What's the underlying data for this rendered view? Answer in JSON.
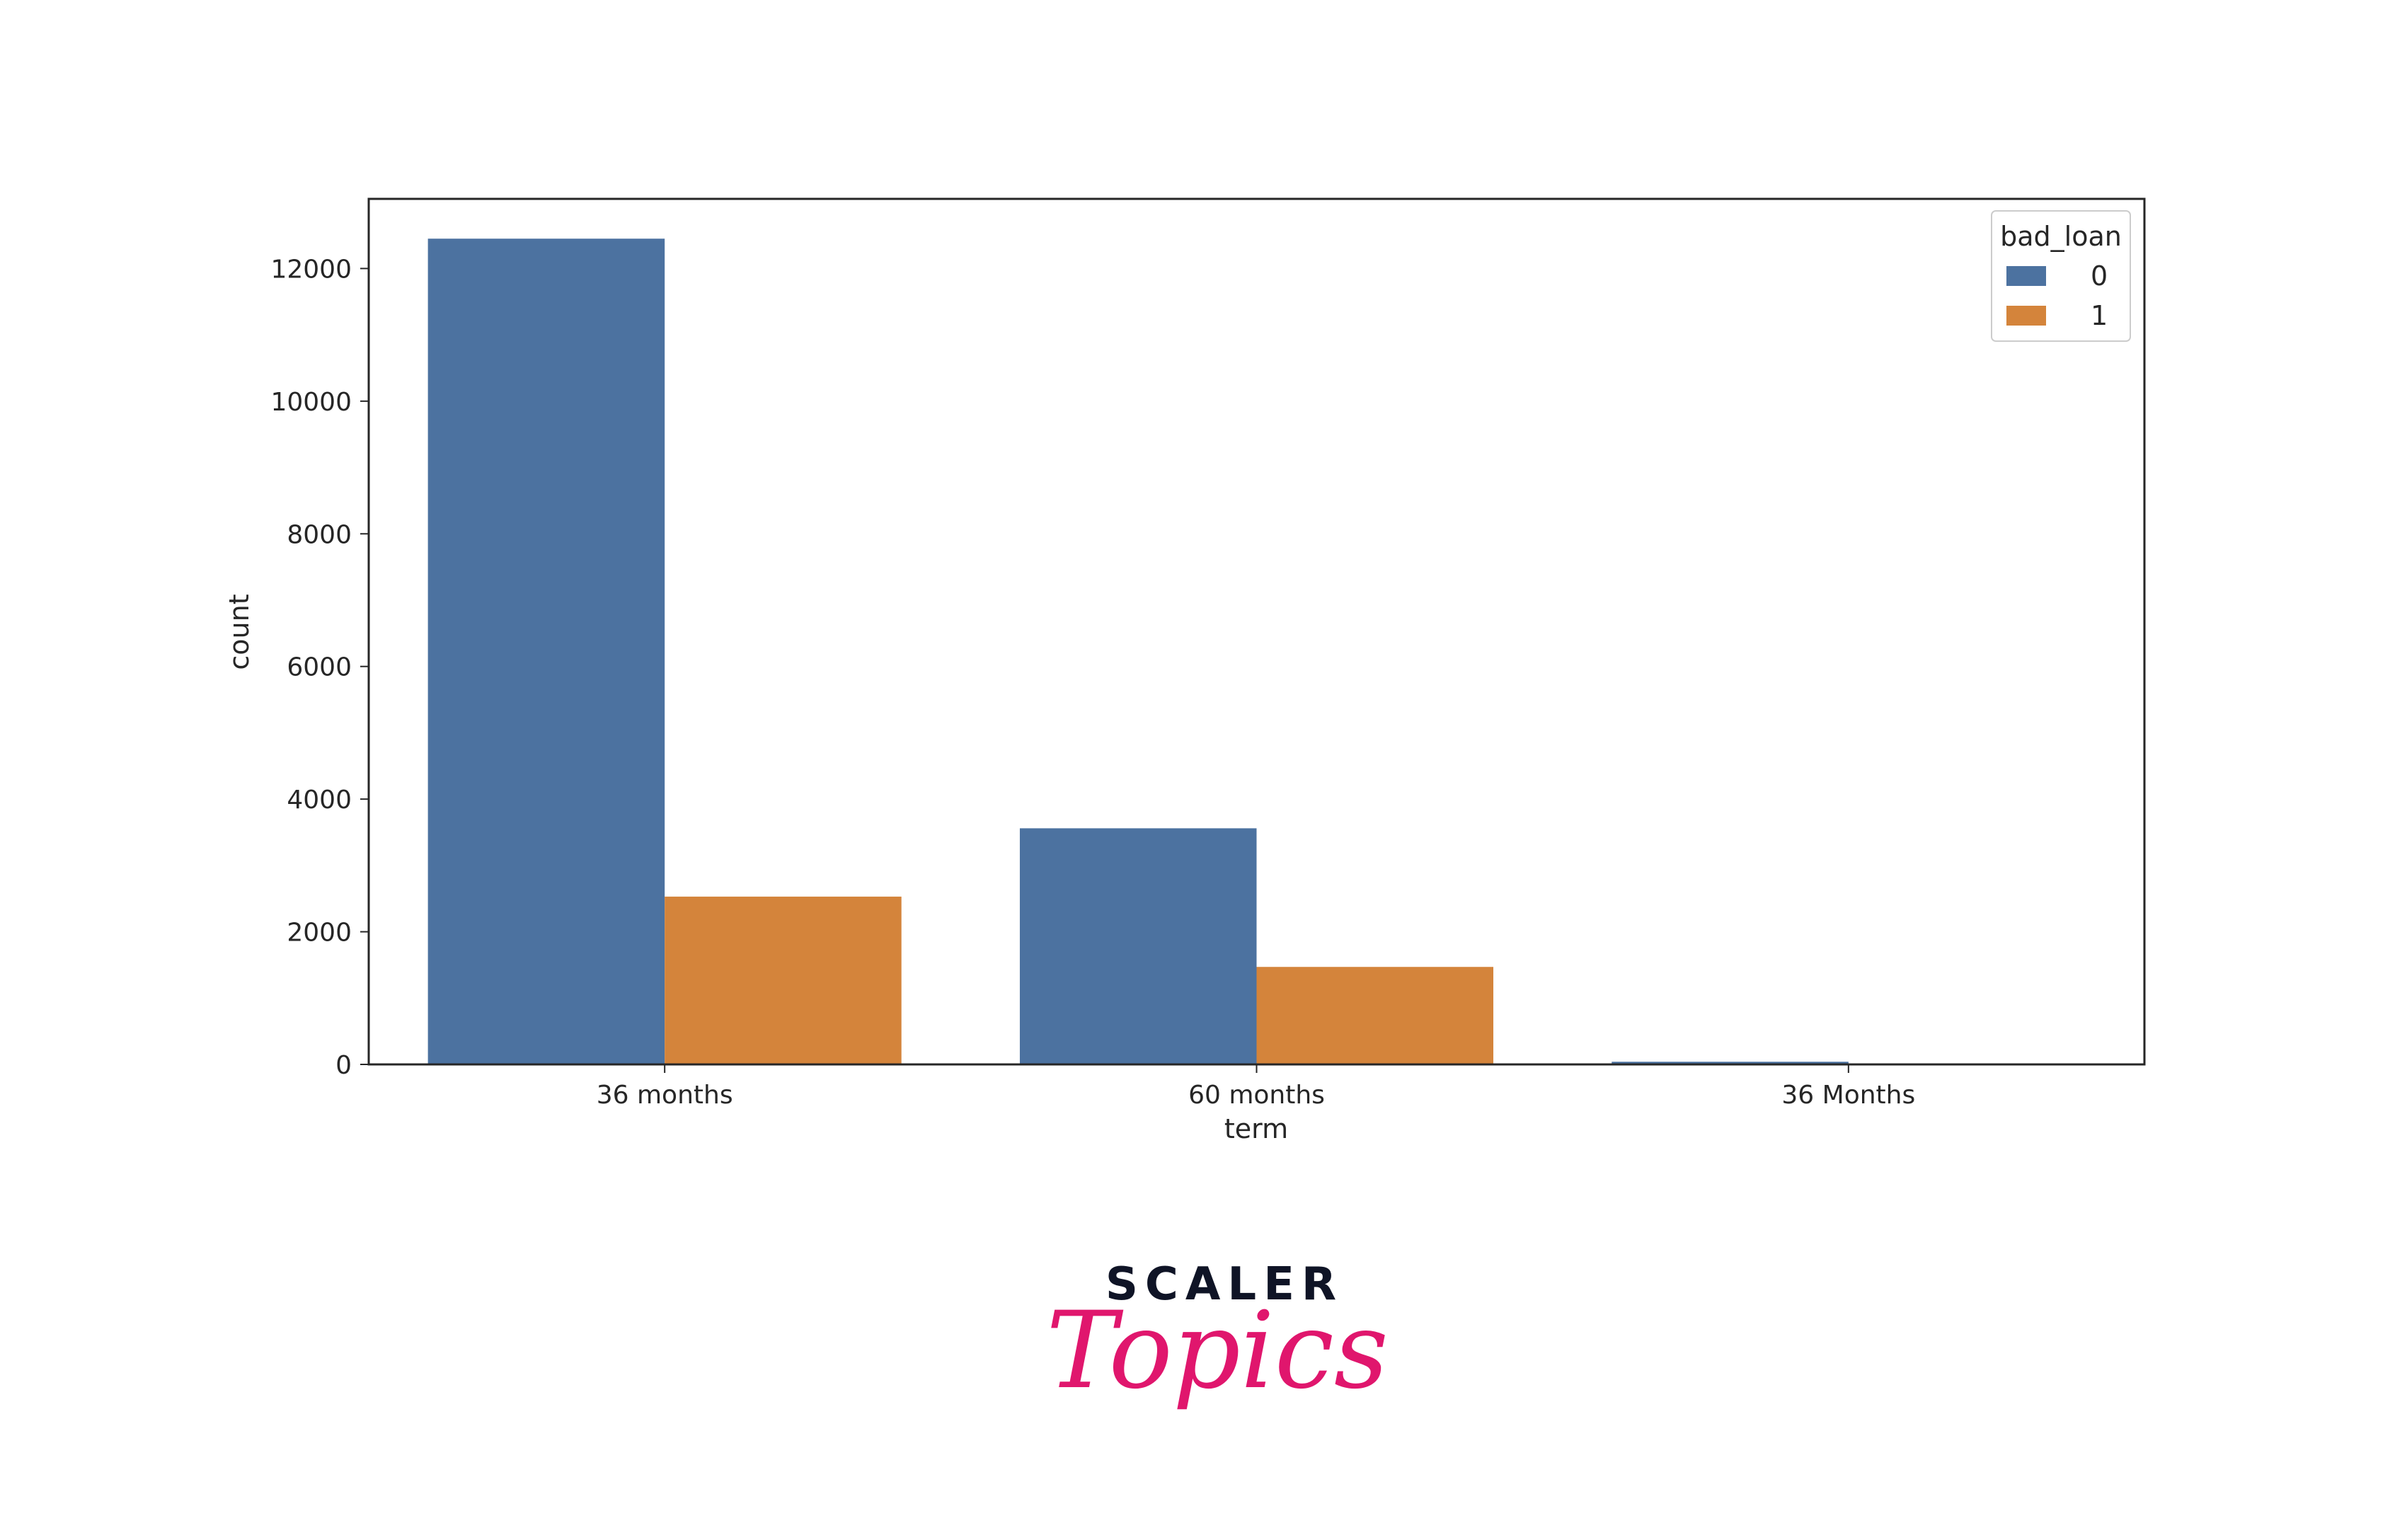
{
  "chart_data": {
    "type": "bar",
    "title": "",
    "xlabel": "term",
    "ylabel": "count",
    "categories": [
      "36 months",
      "60 months",
      "36 Months"
    ],
    "series": [
      {
        "name": "0",
        "values": [
          12450,
          3560,
          40
        ],
        "color": "#4c72a0"
      },
      {
        "name": "1",
        "values": [
          2530,
          1470,
          0
        ],
        "color": "#d4843b"
      }
    ],
    "ylim": [
      0,
      13050
    ],
    "yticks": [
      0,
      2000,
      4000,
      6000,
      8000,
      10000,
      12000
    ],
    "legend": {
      "title": "bad_loan",
      "placement": "top-right"
    },
    "grid": false
  },
  "branding": {
    "line1": "SCALER",
    "line2": "Topics",
    "colors": {
      "scaler": "#0f1426",
      "topics": "#e0166d"
    }
  }
}
